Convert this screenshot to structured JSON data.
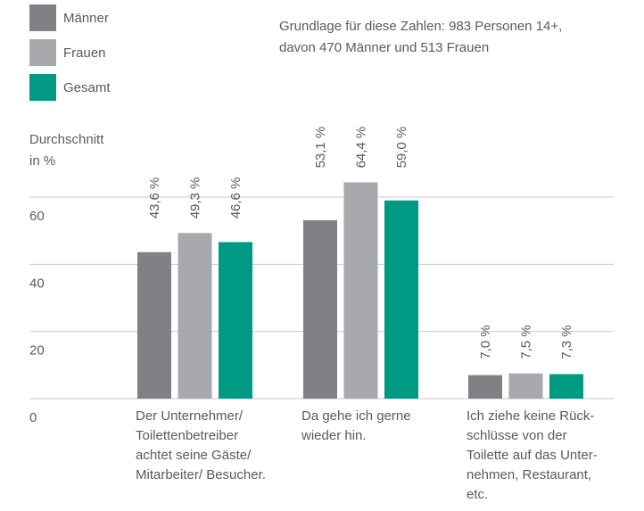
{
  "chart_data": {
    "type": "bar",
    "note": "Grundlage für diese Zahlen: 983 Personen 14+,\ndavon 470 Männer und 513 Frauen",
    "y_label": "Durchschnitt\nin %",
    "categories": [
      "Der Unternehmer/\nToilettenbetreiber\nachtet seine Gäste/\nMitarbeiter/ Besucher.",
      "Da gehe ich gerne\nwieder hin.",
      "Ich ziehe keine Rück-\nschlüsse von der\nToilette auf das Unter-\nnehmen, Restaurant,\netc."
    ],
    "series": [
      {
        "name": "Männer",
        "color": "#808184",
        "values": [
          43.6,
          53.1,
          7.0
        ],
        "value_labels": [
          "43,6 %",
          "53,1 %",
          "7,0 %"
        ]
      },
      {
        "name": "Frauen",
        "color": "#a7a9ac",
        "values": [
          49.3,
          64.4,
          7.5
        ],
        "value_labels": [
          "49,3 %",
          "64,4 %",
          "7,5 %"
        ]
      },
      {
        "name": "Gesamt",
        "color": "#009a84",
        "values": [
          46.6,
          59.0,
          7.3
        ],
        "value_labels": [
          "46,6 %",
          "59,0 %",
          "7,3 %"
        ]
      }
    ],
    "ylim": [
      0,
      60
    ],
    "yticks": [
      0,
      20,
      40,
      60
    ],
    "grid": true
  }
}
